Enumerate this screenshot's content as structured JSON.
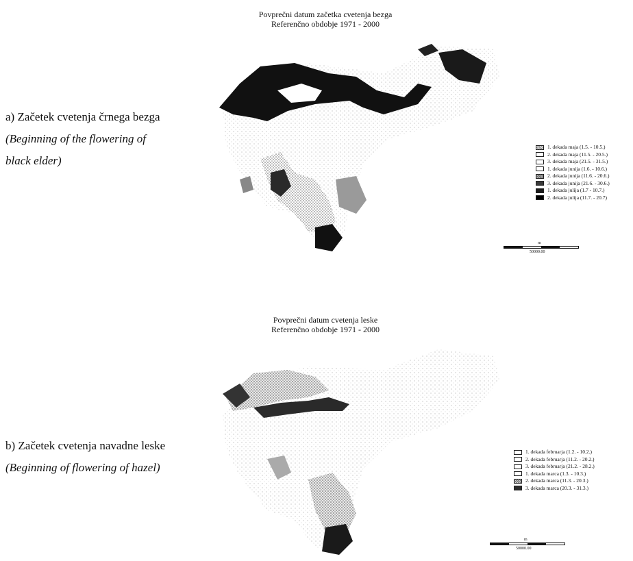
{
  "panels": [
    {
      "title_line1": "Povprečni datum začetka cvetenja bezga",
      "title_line2": "Referenčno obdobje 1971 - 2000",
      "caption_sl": "a) Začetek cvetenja črnega bezga",
      "caption_en_line1": "(Beginning of the flowering of",
      "caption_en_line2": "black elder)",
      "legend": [
        {
          "label": "1. dekada maja (1.5. - 10.5.)",
          "color": "#bdbdbd",
          "pattern": "dots"
        },
        {
          "label": "2. dekada maja (11.5. - 20.5.)",
          "color": "#ffffff",
          "pattern": "none"
        },
        {
          "label": "3. dekada maja (21.5. - 31.5.)",
          "color": "#ffffff",
          "pattern": "none"
        },
        {
          "label": "1. dekada junija (1.6. - 10.6.)",
          "color": "#ffffff",
          "pattern": "none"
        },
        {
          "label": "2. dekada junija (11.6. - 20.6.)",
          "color": "#9e9e9e",
          "pattern": "dots"
        },
        {
          "label": "3. dekada junija (21.6. - 30.6.)",
          "color": "#3a3a3a",
          "pattern": "solid"
        },
        {
          "label": "1. dekada julija (1.7 - 10.7.)",
          "color": "#1a1a1a",
          "pattern": "solid"
        },
        {
          "label": "2. dekada julija (11.7. - 20.7)",
          "color": "#000000",
          "pattern": "solid"
        }
      ],
      "scale_unit": "m",
      "scale_label": "50000.00"
    },
    {
      "title_line1": "Povprečni datum cvetenja leske",
      "title_line2": "Referenčno obdobje 1971 - 2000",
      "caption_sl": "b) Začetek cvetenja navadne leske",
      "caption_en": "(Beginning of flowering of hazel)",
      "legend": [
        {
          "label": "1. dekada februarja (1.2. - 10.2.)",
          "color": "#ffffff",
          "pattern": "none"
        },
        {
          "label": "2. dekada februarja (11.2. - 20.2.)",
          "color": "#ffffff",
          "pattern": "none"
        },
        {
          "label": "3. dekada februarja (21.2. - 28.2.)",
          "color": "#ffffff",
          "pattern": "none"
        },
        {
          "label": "1. dekada marca (1.3. - 10.3.)",
          "color": "#ffffff",
          "pattern": "none"
        },
        {
          "label": "2. dekada marca (11.3. - 20.3.)",
          "color": "#b0b0b0",
          "pattern": "dots"
        },
        {
          "label": "3. dekada marca (20.3. - 31.3.)",
          "color": "#2a2a2a",
          "pattern": "solid"
        }
      ],
      "scale_unit": "m",
      "scale_label": "50000.00"
    }
  ]
}
